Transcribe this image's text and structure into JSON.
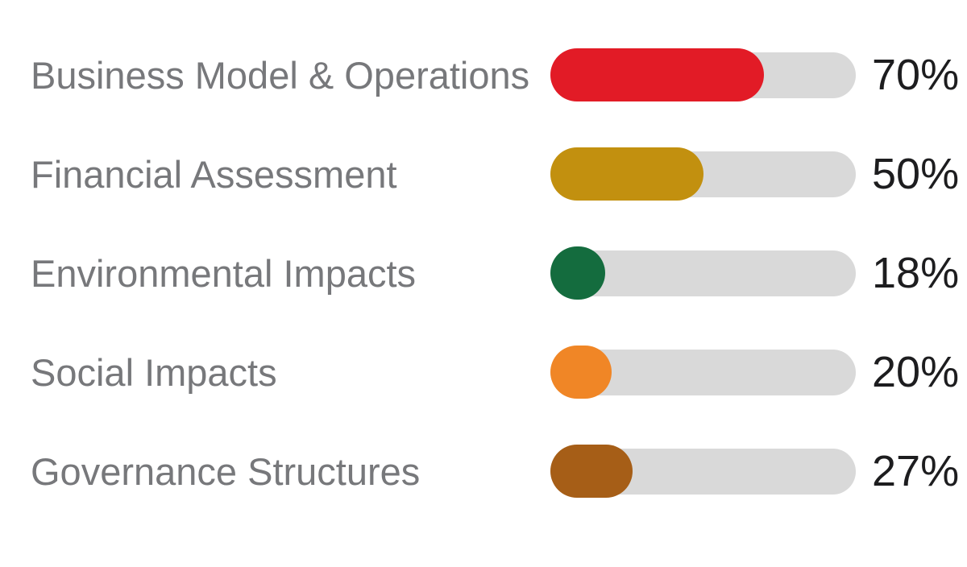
{
  "chart_data": {
    "type": "bar",
    "orientation": "horizontal",
    "title": "",
    "xlabel": "",
    "ylabel": "",
    "xlim": [
      0,
      100
    ],
    "grid": false,
    "legend": "none",
    "categories": [
      "Business Model & Operations",
      "Financial Assessment",
      "Environmental Impacts",
      "Social Impacts",
      "Governance Structures"
    ],
    "values": [
      70,
      50,
      18,
      20,
      27
    ],
    "value_labels": [
      "70%",
      "50%",
      "18%",
      "20%",
      "27%"
    ],
    "bar_colors": [
      "#e21b26",
      "#c2900f",
      "#146c3e",
      "#f08626",
      "#a65e17"
    ],
    "track_color": "#d9d9d9",
    "label_color": "#77787b",
    "value_color": "#1d1d1f"
  }
}
